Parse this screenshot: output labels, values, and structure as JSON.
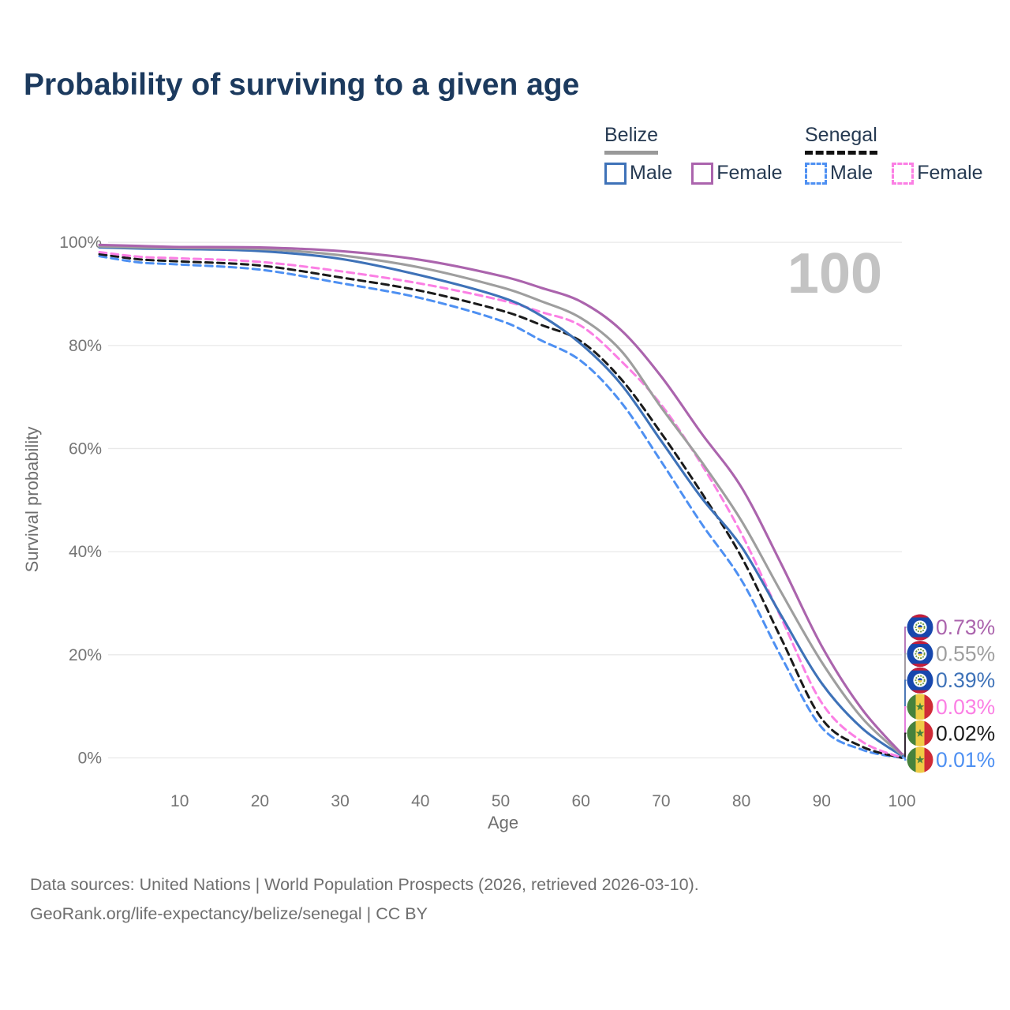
{
  "title": "Probability of surviving to a given age",
  "watermark_age": "100",
  "legend": {
    "belize": {
      "label": "Belize",
      "male": "Male",
      "female": "Female"
    },
    "senegal": {
      "label": "Senegal",
      "male": "Male",
      "female": "Female"
    }
  },
  "colors": {
    "title": "#1c3a5e",
    "legend_text": "#263a52",
    "belize_underline": "#999999",
    "senegal_underline": "#111111",
    "belize_male": "#3e72b8",
    "belize_female": "#ab64ad",
    "belize_both": "#9e9e9e",
    "senegal_male": "#4e90f2",
    "senegal_female": "#fb7fe4",
    "senegal_both": "#1a1a1a",
    "grid": "#e9e9e9",
    "axis_text": "#757575",
    "axis_title_text": "#6f6f6f",
    "watermark": "#c3c3c3",
    "footer_text": "#6e6e6e",
    "flag_belize_blue": "#1747ad",
    "flag_belize_red": "#c41e3a",
    "flag_belize_green": "#6f9a40",
    "flag_senegal_green": "#47823c",
    "flag_senegal_yellow": "#efcb45",
    "flag_senegal_red": "#cf2b36"
  },
  "chart_data": {
    "type": "line",
    "title": "Probability of surviving to a given age",
    "xlabel": "Age",
    "ylabel": "Survival probability",
    "xlim": [
      0,
      100
    ],
    "ylim": [
      0,
      100
    ],
    "grid": "horizontal-only",
    "x_ticks": [
      10,
      20,
      30,
      40,
      50,
      60,
      70,
      80,
      90,
      100
    ],
    "y_ticks": [
      "0%",
      "20%",
      "40%",
      "60%",
      "80%",
      "100%"
    ],
    "ages": [
      0,
      5,
      10,
      20,
      30,
      40,
      50,
      55,
      60,
      65,
      70,
      75,
      80,
      85,
      90,
      95,
      100
    ],
    "series": [
      {
        "name": "Belize Female",
        "key": "belize_female",
        "country": "Belize",
        "flag": "belize",
        "dashed": false,
        "values": [
          99.5,
          99.3,
          99.1,
          99.0,
          98.3,
          96.6,
          93.5,
          91.2,
          88.5,
          83.0,
          74.0,
          63.0,
          52.5,
          37.5,
          21.7,
          9.5,
          0.73
        ],
        "end_label": "0.73%"
      },
      {
        "name": "Belize Both sexes",
        "key": "belize_both",
        "country": "Belize",
        "flag": "belize",
        "dashed": false,
        "values": [
          99.2,
          99.0,
          98.9,
          98.7,
          97.5,
          95.1,
          91.3,
          88.6,
          85.3,
          79.0,
          68.0,
          57.5,
          46.0,
          32.0,
          18.6,
          7.8,
          0.55
        ],
        "end_label": "0.55%"
      },
      {
        "name": "Belize Male",
        "key": "belize_male",
        "country": "Belize",
        "flag": "belize",
        "dashed": false,
        "values": [
          99.0,
          98.8,
          98.7,
          98.3,
          96.8,
          93.6,
          89.4,
          85.8,
          80.3,
          72.5,
          61.5,
          50.5,
          41.0,
          27.5,
          14.5,
          5.8,
          0.39
        ],
        "end_label": "0.39%"
      },
      {
        "name": "Senegal Female",
        "key": "senegal_female",
        "country": "Senegal",
        "flag": "senegal",
        "dashed": true,
        "values": [
          98.1,
          97.2,
          96.9,
          96.2,
          94.4,
          92.0,
          88.8,
          86.5,
          83.8,
          77.0,
          68.5,
          57.0,
          43.5,
          27.0,
          10.7,
          3.2,
          0.03
        ],
        "end_label": "0.03%"
      },
      {
        "name": "Senegal Both sexes",
        "key": "senegal_both",
        "country": "Senegal",
        "flag": "senegal",
        "dashed": true,
        "values": [
          97.7,
          96.7,
          96.3,
          95.5,
          93.2,
          90.6,
          86.8,
          84.0,
          80.8,
          73.5,
          63.0,
          51.5,
          39.0,
          23.0,
          7.6,
          2.2,
          0.02
        ],
        "end_label": "0.02%"
      },
      {
        "name": "Senegal Male",
        "key": "senegal_male",
        "country": "Senegal",
        "flag": "senegal",
        "dashed": true,
        "values": [
          97.3,
          96.1,
          95.7,
          94.7,
          92.1,
          89.2,
          84.8,
          81.0,
          77.0,
          69.0,
          57.5,
          45.5,
          34.5,
          19.5,
          5.9,
          1.6,
          0.01
        ],
        "end_label": "0.01%"
      }
    ]
  },
  "footer": {
    "line1": "Data sources: United Nations | World Population Prospects (2026, retrieved 2026-03-10).",
    "line2": "GeoRank.org/life-expectancy/belize/senegal | CC BY"
  }
}
